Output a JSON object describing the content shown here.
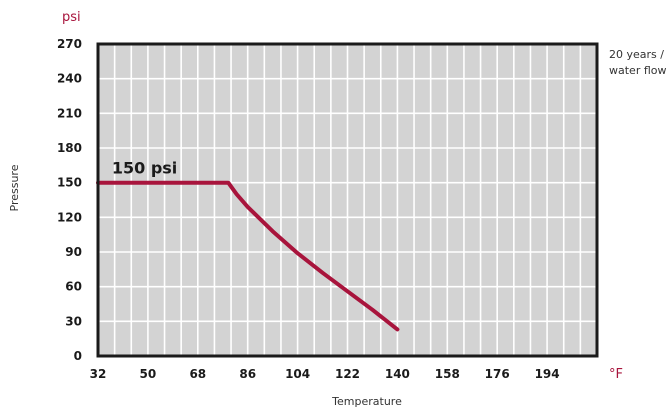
{
  "chart_data": {
    "type": "line",
    "title": "",
    "xlabel": "Temperature",
    "ylabel": "Pressure",
    "x_unit": "°F",
    "y_unit": "psi",
    "xlim": [
      32,
      212
    ],
    "ylim": [
      0,
      270
    ],
    "x_ticks": [
      32,
      50,
      68,
      86,
      104,
      122,
      140,
      158,
      176,
      194
    ],
    "y_ticks": [
      0,
      30,
      60,
      90,
      120,
      150,
      180,
      210,
      240,
      270
    ],
    "grid": true,
    "background_color": "#d3d3d3",
    "line_color": "#a8143c",
    "series": [
      {
        "x": [
          32,
          79,
          82,
          86,
          95,
          104,
          113,
          122,
          131,
          140
        ],
        "y": [
          150,
          150,
          140,
          129,
          108,
          89,
          72,
          56,
          40,
          23
        ]
      }
    ],
    "annotation": {
      "text": "150 psi",
      "x": 37,
      "y": 158
    },
    "side_note": [
      "20 years /",
      "water flow"
    ]
  }
}
